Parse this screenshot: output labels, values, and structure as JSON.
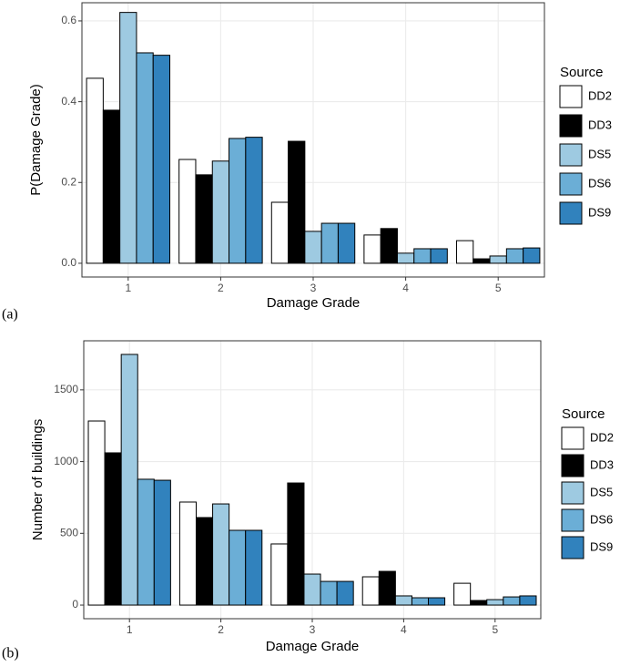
{
  "chart_data": [
    {
      "type": "bar",
      "panel_label": "(a)",
      "xlabel": "Damage Grade",
      "ylabel": "P(Damage Grade)",
      "categories": [
        "1",
        "2",
        "3",
        "4",
        "5"
      ],
      "series": [
        {
          "name": "DD2",
          "color": "#ffffff",
          "values": [
            0.458,
            0.257,
            0.151,
            0.07,
            0.056
          ]
        },
        {
          "name": "DD3",
          "color": "#000000",
          "values": [
            0.379,
            0.219,
            0.302,
            0.086,
            0.011
          ]
        },
        {
          "name": "DS5",
          "color": "#9ecae1",
          "values": [
            0.621,
            0.253,
            0.079,
            0.025,
            0.018
          ]
        },
        {
          "name": "DS6",
          "color": "#6baed6",
          "values": [
            0.521,
            0.309,
            0.099,
            0.036,
            0.036
          ]
        },
        {
          "name": "DS9",
          "color": "#3182bd",
          "values": [
            0.515,
            0.312,
            0.099,
            0.036,
            0.038
          ]
        }
      ],
      "ylim": [
        -0.034,
        0.645
      ],
      "yticks": [
        {
          "value": 0,
          "label": "0.0"
        },
        0.2,
        0.4,
        0.6
      ],
      "grid": true,
      "legend_title": "Source",
      "legend_position": "right"
    },
    {
      "type": "bar",
      "panel_label": "(b)",
      "xlabel": "Damage Grade",
      "ylabel": "Number of buildings",
      "categories": [
        "1",
        "2",
        "3",
        "4",
        "5"
      ],
      "series": [
        {
          "name": "DD2",
          "color": "#ffffff",
          "values": [
            1283,
            718,
            426,
            197,
            152
          ]
        },
        {
          "name": "DD3",
          "color": "#000000",
          "values": [
            1061,
            610,
            851,
            235,
            32
          ]
        },
        {
          "name": "DS5",
          "color": "#9ecae1",
          "values": [
            1747,
            705,
            216,
            64,
            38
          ]
        },
        {
          "name": "DS6",
          "color": "#6baed6",
          "values": [
            877,
            521,
            165,
            51,
            57
          ]
        },
        {
          "name": "DS9",
          "color": "#3182bd",
          "values": [
            870,
            521,
            165,
            51,
            64
          ]
        }
      ],
      "ylim": [
        -95,
        1842
      ],
      "yticks": [
        0,
        500,
        1000,
        1500
      ],
      "grid": true,
      "legend_title": "Source",
      "legend_position": "right"
    }
  ]
}
